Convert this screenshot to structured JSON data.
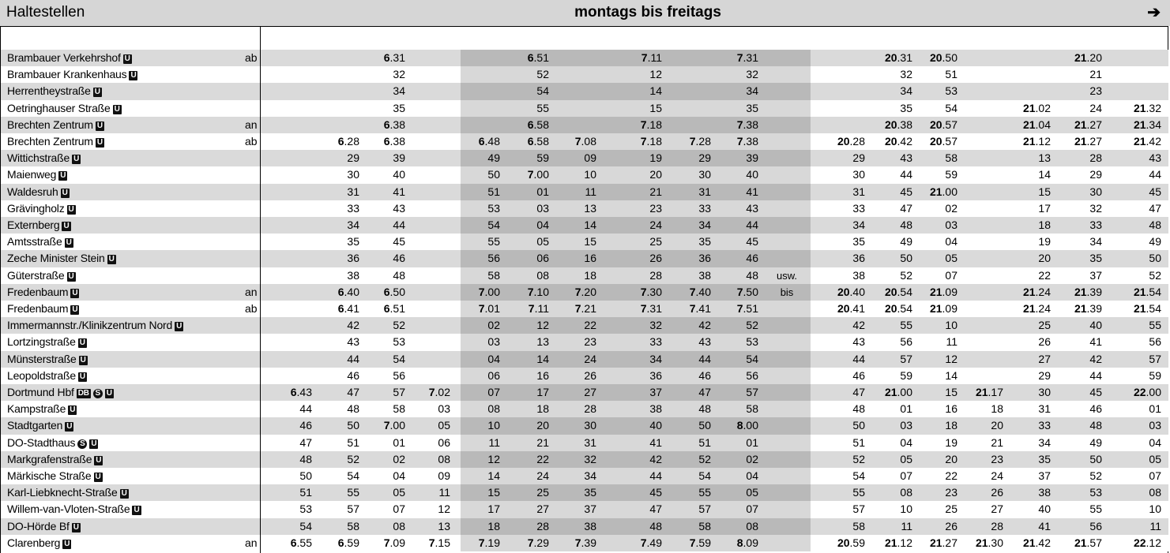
{
  "header": {
    "title": "Haltestellen",
    "days": "montags bis freitags",
    "arrow": "➔"
  },
  "notes": {
    "usw": "usw.",
    "bis": "bis"
  },
  "stops": [
    {
      "name": "Brambauer Verkehrshof",
      "symbols": [
        "U"
      ],
      "mode": "ab",
      "times": [
        null,
        null,
        "6.31",
        null,
        null,
        "6.51",
        null,
        "7.11",
        null,
        "7.31",
        null,
        "20.31",
        "20.50",
        null,
        null,
        "21.20",
        null
      ]
    },
    {
      "name": "Brambauer Krankenhaus",
      "symbols": [
        "U"
      ],
      "mode": null,
      "times": [
        null,
        null,
        "32",
        null,
        null,
        "52",
        null,
        "12",
        null,
        "32",
        null,
        "32",
        "51",
        null,
        null,
        "21",
        null
      ]
    },
    {
      "name": "Herrentheystraße",
      "symbols": [
        "U"
      ],
      "mode": null,
      "times": [
        null,
        null,
        "34",
        null,
        null,
        "54",
        null,
        "14",
        null,
        "34",
        null,
        "34",
        "53",
        null,
        null,
        "23",
        null
      ]
    },
    {
      "name": "Oetringhauser Straße",
      "symbols": [
        "U"
      ],
      "mode": null,
      "times": [
        null,
        null,
        "35",
        null,
        null,
        "55",
        null,
        "15",
        null,
        "35",
        null,
        "35",
        "54",
        null,
        "21.02",
        "24",
        "21.32"
      ]
    },
    {
      "name": "Brechten Zentrum",
      "symbols": [
        "U"
      ],
      "mode": "an",
      "times": [
        null,
        null,
        "6.38",
        null,
        null,
        "6.58",
        null,
        "7.18",
        null,
        "7.38",
        null,
        "20.38",
        "20.57",
        null,
        "21.04",
        "21.27",
        "21.34"
      ]
    },
    {
      "name": "Brechten Zentrum",
      "symbols": [
        "U"
      ],
      "mode": "ab",
      "times": [
        null,
        "6.28",
        "6.38",
        null,
        "6.48",
        "6.58",
        "7.08",
        "7.18",
        "7.28",
        "7.38",
        "20.28",
        "20.42",
        "20.57",
        null,
        "21.12",
        "21.27",
        "21.42"
      ]
    },
    {
      "name": "Wittichstraße",
      "symbols": [
        "U"
      ],
      "mode": null,
      "times": [
        null,
        "29",
        "39",
        null,
        "49",
        "59",
        "09",
        "19",
        "29",
        "39",
        "29",
        "43",
        "58",
        null,
        "13",
        "28",
        "43"
      ]
    },
    {
      "name": "Maienweg",
      "symbols": [
        "U"
      ],
      "mode": null,
      "times": [
        null,
        "30",
        "40",
        null,
        "50",
        "7.00",
        "10",
        "20",
        "30",
        "40",
        "30",
        "44",
        "59",
        null,
        "14",
        "29",
        "44"
      ]
    },
    {
      "name": "Waldesruh",
      "symbols": [
        "U"
      ],
      "mode": null,
      "times": [
        null,
        "31",
        "41",
        null,
        "51",
        "01",
        "11",
        "21",
        "31",
        "41",
        "31",
        "45",
        "21.00",
        null,
        "15",
        "30",
        "45"
      ]
    },
    {
      "name": "Grävingholz",
      "symbols": [
        "U"
      ],
      "mode": null,
      "times": [
        null,
        "33",
        "43",
        null,
        "53",
        "03",
        "13",
        "23",
        "33",
        "43",
        "33",
        "47",
        "02",
        null,
        "17",
        "32",
        "47"
      ]
    },
    {
      "name": "Externberg",
      "symbols": [
        "U"
      ],
      "mode": null,
      "times": [
        null,
        "34",
        "44",
        null,
        "54",
        "04",
        "14",
        "24",
        "34",
        "44",
        "34",
        "48",
        "03",
        null,
        "18",
        "33",
        "48"
      ]
    },
    {
      "name": "Amtsstraße",
      "symbols": [
        "U"
      ],
      "mode": null,
      "times": [
        null,
        "35",
        "45",
        null,
        "55",
        "05",
        "15",
        "25",
        "35",
        "45",
        "35",
        "49",
        "04",
        null,
        "19",
        "34",
        "49"
      ]
    },
    {
      "name": "Zeche Minister Stein",
      "symbols": [
        "U"
      ],
      "mode": null,
      "times": [
        null,
        "36",
        "46",
        null,
        "56",
        "06",
        "16",
        "26",
        "36",
        "46",
        "36",
        "50",
        "05",
        null,
        "20",
        "35",
        "50"
      ]
    },
    {
      "name": "Güterstraße",
      "symbols": [
        "U"
      ],
      "mode": null,
      "times": [
        null,
        "38",
        "48",
        null,
        "58",
        "08",
        "18",
        "28",
        "38",
        "48",
        "38",
        "52",
        "07",
        null,
        "22",
        "37",
        "52"
      ]
    },
    {
      "name": "Fredenbaum",
      "symbols": [
        "U"
      ],
      "mode": "an",
      "times": [
        null,
        "6.40",
        "6.50",
        null,
        "7.00",
        "7.10",
        "7.20",
        "7.30",
        "7.40",
        "7.50",
        "20.40",
        "20.54",
        "21.09",
        null,
        "21.24",
        "21.39",
        "21.54"
      ]
    },
    {
      "name": "Fredenbaum",
      "symbols": [
        "U"
      ],
      "mode": "ab",
      "times": [
        null,
        "6.41",
        "6.51",
        null,
        "7.01",
        "7.11",
        "7.21",
        "7.31",
        "7.41",
        "7.51",
        "20.41",
        "20.54",
        "21.09",
        null,
        "21.24",
        "21.39",
        "21.54"
      ]
    },
    {
      "name": "Immermannstr./Klinikzentrum Nord",
      "symbols": [
        "U"
      ],
      "mode": null,
      "times": [
        null,
        "42",
        "52",
        null,
        "02",
        "12",
        "22",
        "32",
        "42",
        "52",
        "42",
        "55",
        "10",
        null,
        "25",
        "40",
        "55"
      ]
    },
    {
      "name": "Lortzingstraße",
      "symbols": [
        "U"
      ],
      "mode": null,
      "times": [
        null,
        "43",
        "53",
        null,
        "03",
        "13",
        "23",
        "33",
        "43",
        "53",
        "43",
        "56",
        "11",
        null,
        "26",
        "41",
        "56"
      ]
    },
    {
      "name": "Münsterstraße",
      "symbols": [
        "U"
      ],
      "mode": null,
      "times": [
        null,
        "44",
        "54",
        null,
        "04",
        "14",
        "24",
        "34",
        "44",
        "54",
        "44",
        "57",
        "12",
        null,
        "27",
        "42",
        "57"
      ]
    },
    {
      "name": "Leopoldstraße",
      "symbols": [
        "U"
      ],
      "mode": null,
      "times": [
        null,
        "46",
        "56",
        null,
        "06",
        "16",
        "26",
        "36",
        "46",
        "56",
        "46",
        "59",
        "14",
        null,
        "29",
        "44",
        "59"
      ]
    },
    {
      "name": "Dortmund Hbf",
      "symbols": [
        "DB",
        "S",
        "U"
      ],
      "mode": null,
      "times": [
        "6.43",
        "47",
        "57",
        "7.02",
        "07",
        "17",
        "27",
        "37",
        "47",
        "57",
        "47",
        "21.00",
        "15",
        "21.17",
        "30",
        "45",
        "22.00"
      ]
    },
    {
      "name": "Kampstraße",
      "symbols": [
        "U"
      ],
      "mode": null,
      "times": [
        "44",
        "48",
        "58",
        "03",
        "08",
        "18",
        "28",
        "38",
        "48",
        "58",
        "48",
        "01",
        "16",
        "18",
        "31",
        "46",
        "01"
      ]
    },
    {
      "name": "Stadtgarten",
      "symbols": [
        "U"
      ],
      "mode": null,
      "times": [
        "46",
        "50",
        "7.00",
        "05",
        "10",
        "20",
        "30",
        "40",
        "50",
        "8.00",
        "50",
        "03",
        "18",
        "20",
        "33",
        "48",
        "03"
      ]
    },
    {
      "name": "DO-Stadthaus",
      "symbols": [
        "S",
        "U"
      ],
      "mode": null,
      "times": [
        "47",
        "51",
        "01",
        "06",
        "11",
        "21",
        "31",
        "41",
        "51",
        "01",
        "51",
        "04",
        "19",
        "21",
        "34",
        "49",
        "04"
      ]
    },
    {
      "name": "Markgrafenstraße",
      "symbols": [
        "U"
      ],
      "mode": null,
      "times": [
        "48",
        "52",
        "02",
        "08",
        "12",
        "22",
        "32",
        "42",
        "52",
        "02",
        "52",
        "05",
        "20",
        "23",
        "35",
        "50",
        "05"
      ]
    },
    {
      "name": "Märkische Straße",
      "symbols": [
        "U"
      ],
      "mode": null,
      "times": [
        "50",
        "54",
        "04",
        "09",
        "14",
        "24",
        "34",
        "44",
        "54",
        "04",
        "54",
        "07",
        "22",
        "24",
        "37",
        "52",
        "07"
      ]
    },
    {
      "name": "Karl-Liebknecht-Straße",
      "symbols": [
        "U"
      ],
      "mode": null,
      "times": [
        "51",
        "55",
        "05",
        "11",
        "15",
        "25",
        "35",
        "45",
        "55",
        "05",
        "55",
        "08",
        "23",
        "26",
        "38",
        "53",
        "08"
      ]
    },
    {
      "name": "Willem-van-Vloten-Straße",
      "symbols": [
        "U"
      ],
      "mode": null,
      "times": [
        "53",
        "57",
        "07",
        "12",
        "17",
        "27",
        "37",
        "47",
        "57",
        "07",
        "57",
        "10",
        "25",
        "27",
        "40",
        "55",
        "10"
      ]
    },
    {
      "name": "DO-Hörde Bf",
      "symbols": [
        "U"
      ],
      "mode": null,
      "times": [
        "54",
        "58",
        "08",
        "13",
        "18",
        "28",
        "38",
        "48",
        "58",
        "08",
        "58",
        "11",
        "26",
        "28",
        "41",
        "56",
        "11"
      ]
    },
    {
      "name": "Clarenberg",
      "symbols": [
        "U"
      ],
      "mode": "an",
      "times": [
        "6.55",
        "6.59",
        "7.09",
        "7.15",
        "7.19",
        "7.29",
        "7.39",
        "7.49",
        "7.59",
        "8.09",
        "20.59",
        "21.12",
        "21.27",
        "21.30",
        "21.42",
        "21.57",
        "22.12"
      ]
    }
  ]
}
